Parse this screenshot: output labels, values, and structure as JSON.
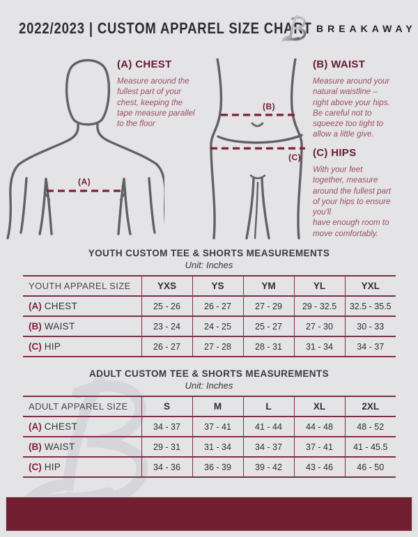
{
  "header": {
    "title": "2022/2023  |  CUSTOM APPAREL SIZE CHART",
    "brand": "BREAKAWAY"
  },
  "diagram": {
    "chest": {
      "heading": "(A) CHEST",
      "marker": "(A)",
      "body": "Measure around the\nfullest part of your\nchest, keeping the\ntape measure parallel\nto the floor"
    },
    "waist": {
      "heading": "(B) WAIST",
      "marker": "(B)",
      "body": "Measure around your\nnatural waistline –\nright above your hips.\nBe careful not to\nsqueeze too tight to\nallow a little give."
    },
    "hips": {
      "heading": "(C) HIPS",
      "marker": "(C)",
      "body": "With your feet\ntogether, measure\naround the fullest part\nof your hips to ensure\nyou'll\nhave enough room to\nmove comfortably."
    }
  },
  "youth_table": {
    "title": "YOUTH CUSTOM TEE & SHORTS MEASUREMENTS",
    "subtitle": "Unit: Inches",
    "label_header": "YOUTH APPAREL SIZE",
    "sizes": [
      "YXS",
      "YS",
      "YM",
      "YL",
      "YXL"
    ],
    "rows": [
      {
        "prefix": "(A)",
        "label": "CHEST",
        "values": [
          "25 - 26",
          "26 - 27",
          "27 - 29",
          "29 - 32.5",
          "32.5 - 35.5"
        ]
      },
      {
        "prefix": "(B)",
        "label": "WAIST",
        "values": [
          "23 - 24",
          "24 - 25",
          "25 - 27",
          "27 - 30",
          "30 - 33"
        ]
      },
      {
        "prefix": "(C)",
        "label": "HIP",
        "values": [
          "26 - 27",
          "27 - 28",
          "28 - 31",
          "31 - 34",
          "34 - 37"
        ]
      }
    ]
  },
  "adult_table": {
    "title": "ADULT CUSTOM TEE & SHORTS MEASUREMENTS",
    "subtitle": "Unit: Inches",
    "label_header": "ADULT APPAREL SIZE",
    "sizes": [
      "S",
      "M",
      "L",
      "XL",
      "2XL"
    ],
    "rows": [
      {
        "prefix": "(A)",
        "label": "CHEST",
        "values": [
          "34 - 37",
          "37 - 41",
          "41 - 44",
          "44 - 48",
          "48 - 52"
        ]
      },
      {
        "prefix": "(B)",
        "label": "WAIST",
        "values": [
          "29 - 31",
          "31 - 34",
          "34 - 37",
          "37 - 41",
          "41 - 45.5"
        ]
      },
      {
        "prefix": "(C)",
        "label": "HIP",
        "values": [
          "34 - 36",
          "36 - 39",
          "39 - 42",
          "43 - 46",
          "46 - 50"
        ]
      }
    ]
  },
  "colors": {
    "background": "#e4e4e6",
    "maroon_heading": "#671b31",
    "table_border": "#7d2e41",
    "footer_bar": "#721e31",
    "description_text": "#9a4d62",
    "figure_stroke": "#616165",
    "watermark": "#d6d6da"
  }
}
